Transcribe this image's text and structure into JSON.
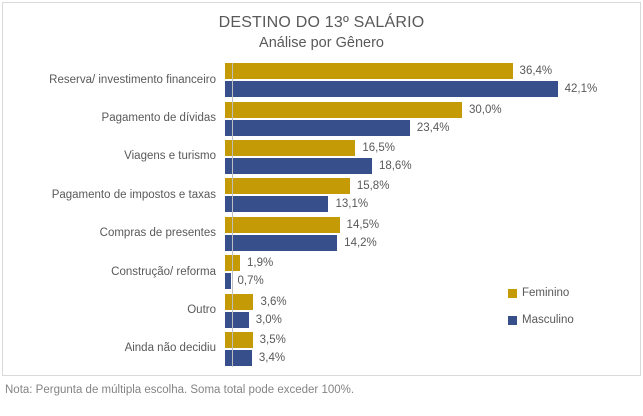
{
  "chart_data": {
    "type": "bar",
    "orientation": "horizontal",
    "title": "DESTINO DO 13º SALÁRIO",
    "subtitle": "Análise por Gênero",
    "categories": [
      "Reserva/ investimento financeiro",
      "Pagamento de dívidas",
      "Viagens e turismo",
      "Pagamento de impostos e taxas",
      "Compras de presentes",
      "Construção/ reforma",
      "Outro",
      "Ainda não decidiu"
    ],
    "series": [
      {
        "name": "Feminino",
        "color": "#C49A06",
        "values": [
          36.4,
          30.0,
          16.5,
          15.8,
          14.5,
          1.9,
          3.6,
          3.5
        ],
        "value_labels": [
          "36,4%",
          "30,0%",
          "16,5%",
          "15,8%",
          "14,5%",
          "1,9%",
          "3,6%",
          "3,5%"
        ]
      },
      {
        "name": "Masculino",
        "color": "#374F8B",
        "values": [
          42.1,
          23.4,
          18.6,
          13.1,
          14.2,
          0.7,
          3.0,
          3.4
        ],
        "value_labels": [
          "42,1%",
          "23,4%",
          "18,6%",
          "13,1%",
          "14,2%",
          "0,7%",
          "3,0%",
          "3,4%"
        ]
      }
    ],
    "xlim": [
      0,
      45
    ],
    "grid": false,
    "legend_position": "right",
    "axis_line_color": "#BFBFBF",
    "border_color": "#D9D9D9",
    "text_color": "#595959"
  },
  "note": "Nota: Pergunta de múltipla escolha. Soma total pode exceder 100%."
}
